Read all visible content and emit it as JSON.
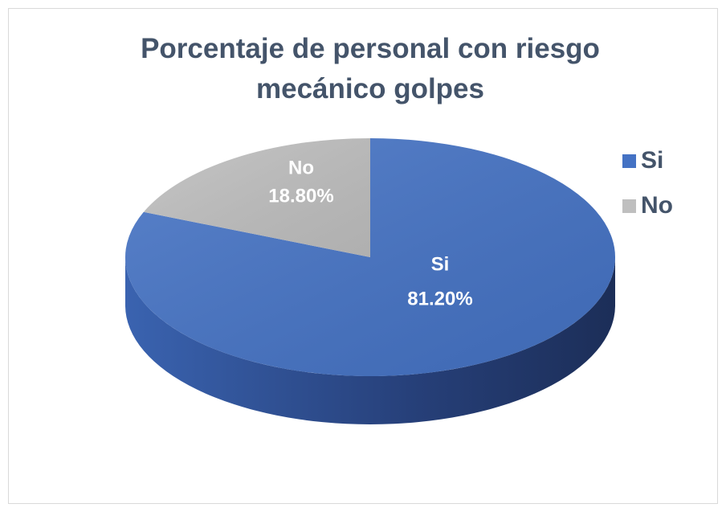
{
  "chart_data": {
    "type": "pie",
    "title": "Porcentaje de personal con riesgo mecánico golpes",
    "categories": [
      "Si",
      "No"
    ],
    "values": [
      81.2,
      18.8
    ],
    "value_labels": [
      "81.20%",
      "18.80%"
    ],
    "colors": [
      "#4472c4",
      "#bfbfbf"
    ],
    "legend": "right",
    "three_d": true
  }
}
